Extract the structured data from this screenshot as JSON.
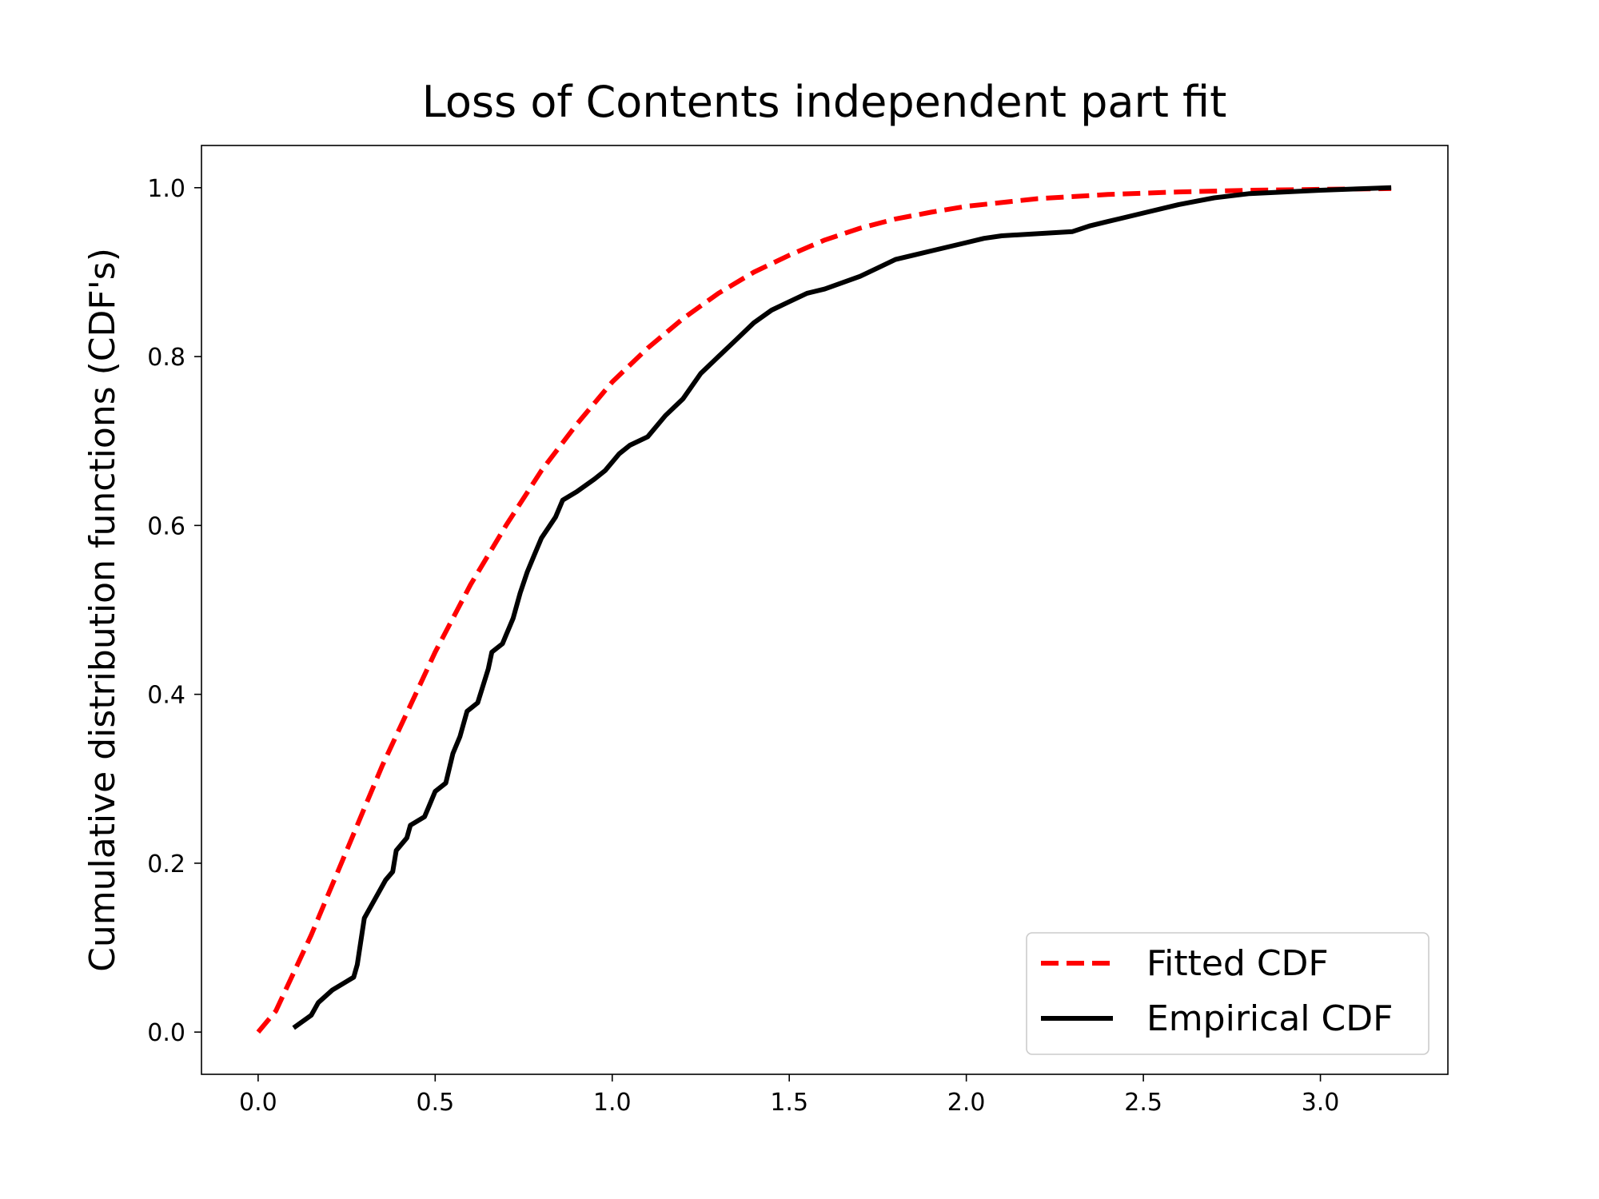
{
  "chart_data": {
    "type": "line",
    "title": "Loss of Contents independent part fit",
    "xlabel": "",
    "ylabel": "Cumulative distribution functions (CDF's)",
    "xlim": [
      -0.16,
      3.36
    ],
    "ylim": [
      -0.05,
      1.05
    ],
    "x_ticks": [
      0.0,
      0.5,
      1.0,
      1.5,
      2.0,
      2.5,
      3.0
    ],
    "x_tick_labels": [
      "0.0",
      "0.5",
      "1.0",
      "1.5",
      "2.0",
      "2.5",
      "3.0"
    ],
    "y_ticks": [
      0.0,
      0.2,
      0.4,
      0.6,
      0.8,
      1.0
    ],
    "y_tick_labels": [
      "0.0",
      "0.2",
      "0.4",
      "0.6",
      "0.8",
      "1.0"
    ],
    "grid": false,
    "legend_position": "bottom-right",
    "series": [
      {
        "name": "Fitted CDF",
        "color": "#ff0000",
        "style": "dashed",
        "x": [
          0.0,
          0.05,
          0.1,
          0.15,
          0.2,
          0.25,
          0.3,
          0.35,
          0.4,
          0.45,
          0.5,
          0.6,
          0.7,
          0.8,
          0.9,
          1.0,
          1.1,
          1.2,
          1.3,
          1.4,
          1.5,
          1.6,
          1.7,
          1.8,
          1.9,
          2.0,
          2.2,
          2.4,
          2.6,
          2.8,
          3.0,
          3.2
        ],
        "y": [
          0.0,
          0.025,
          0.07,
          0.115,
          0.165,
          0.215,
          0.265,
          0.315,
          0.36,
          0.405,
          0.45,
          0.53,
          0.6,
          0.665,
          0.72,
          0.77,
          0.81,
          0.845,
          0.875,
          0.9,
          0.92,
          0.938,
          0.952,
          0.963,
          0.971,
          0.978,
          0.987,
          0.992,
          0.995,
          0.997,
          0.998,
          0.999
        ]
      },
      {
        "name": "Empirical CDF",
        "color": "#000000",
        "style": "solid",
        "x": [
          0.1,
          0.15,
          0.17,
          0.21,
          0.25,
          0.27,
          0.28,
          0.3,
          0.32,
          0.34,
          0.36,
          0.38,
          0.39,
          0.42,
          0.43,
          0.47,
          0.48,
          0.5,
          0.53,
          0.55,
          0.57,
          0.59,
          0.62,
          0.65,
          0.66,
          0.69,
          0.7,
          0.72,
          0.74,
          0.76,
          0.78,
          0.8,
          0.84,
          0.86,
          0.9,
          0.95,
          0.98,
          1.02,
          1.05,
          1.1,
          1.15,
          1.2,
          1.25,
          1.3,
          1.35,
          1.4,
          1.45,
          1.5,
          1.55,
          1.6,
          1.7,
          1.75,
          1.8,
          1.9,
          2.0,
          2.05,
          2.1,
          2.3,
          2.35,
          2.4,
          2.5,
          2.6,
          2.7,
          2.8,
          3.0,
          3.2
        ],
        "y": [
          0.005,
          0.02,
          0.035,
          0.05,
          0.06,
          0.065,
          0.08,
          0.135,
          0.15,
          0.165,
          0.18,
          0.19,
          0.215,
          0.23,
          0.245,
          0.255,
          0.265,
          0.285,
          0.295,
          0.33,
          0.35,
          0.38,
          0.39,
          0.43,
          0.45,
          0.46,
          0.47,
          0.49,
          0.52,
          0.545,
          0.565,
          0.585,
          0.61,
          0.63,
          0.64,
          0.655,
          0.665,
          0.685,
          0.695,
          0.705,
          0.73,
          0.75,
          0.78,
          0.8,
          0.82,
          0.84,
          0.855,
          0.865,
          0.875,
          0.88,
          0.895,
          0.905,
          0.915,
          0.925,
          0.935,
          0.94,
          0.943,
          0.948,
          0.955,
          0.96,
          0.97,
          0.98,
          0.988,
          0.993,
          0.997,
          1.0
        ]
      }
    ]
  }
}
